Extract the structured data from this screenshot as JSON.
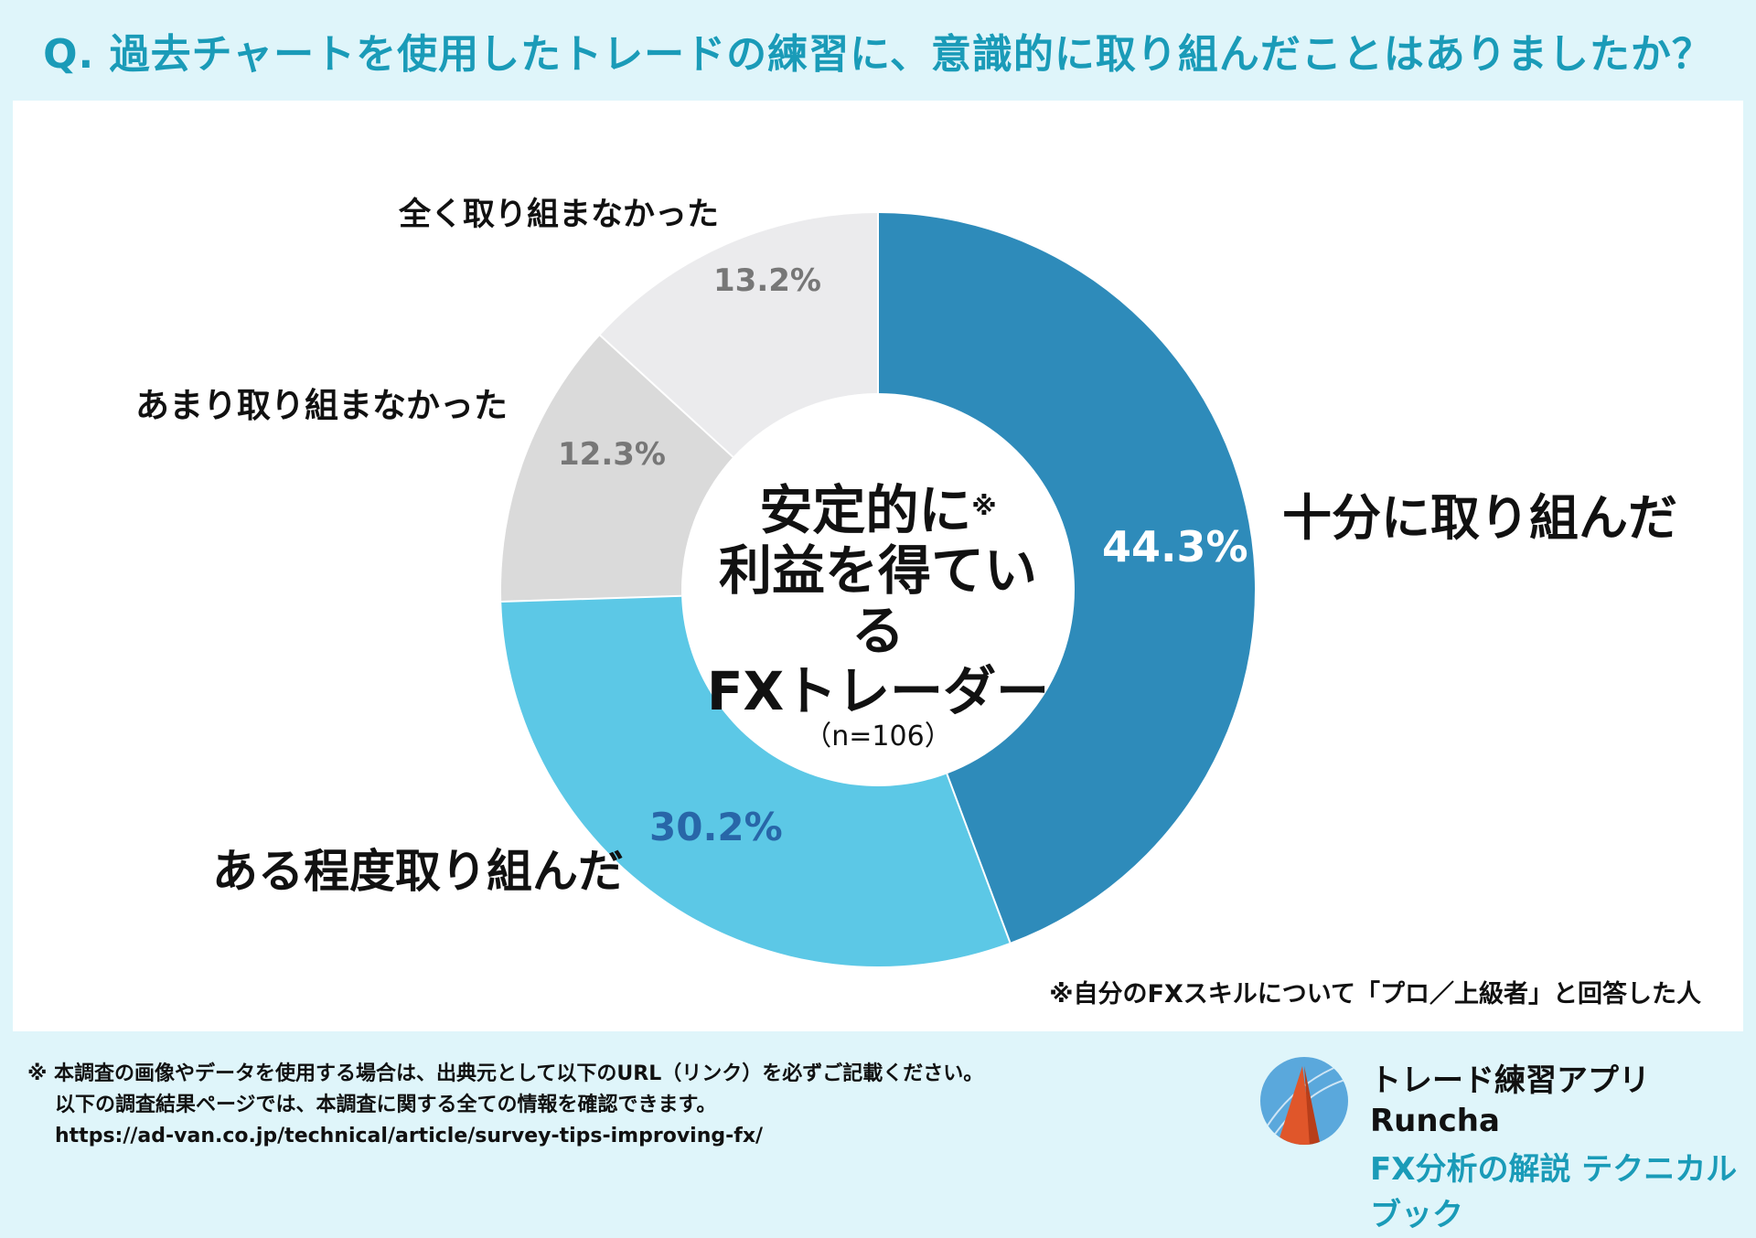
{
  "title": "Q. 過去チャートを使用したトレードの練習に、意識的に取り組んだことはありましたか？",
  "chart_data": {
    "type": "pie",
    "variant": "donut",
    "categories": [
      "十分に取り組んだ",
      "ある程度取り組んだ",
      "あまり取り組まなかった",
      "全く取り組まなかった"
    ],
    "values": [
      44.3,
      30.2,
      12.3,
      13.2
    ],
    "value_labels": [
      "44.3%",
      "30.2%",
      "12.3%",
      "13.2%"
    ],
    "colors": [
      "#2e8bba",
      "#5cc8e6",
      "#dadada",
      "#ebebed"
    ],
    "value_label_colors": [
      "#ffffff",
      "#2866a8",
      "#777777",
      "#777777"
    ],
    "center": {
      "line1": "安定的に",
      "note_mark": "※",
      "line2": "利益を得ている",
      "line3": "FXトレーダー",
      "n": "（n=106）"
    },
    "footnote": "※自分のFXスキルについて「プロ／上級者」と回答した人"
  },
  "bottom": {
    "line1": "※ 本調査の画像やデータを使用する場合は、出典元として以下のURL（リンク）を必ずご記載ください。",
    "line2": "以下の調査結果ページでは、本調査に関する全ての情報を確認できます。",
    "url": "https://ad-van.co.jp/technical/article/survey-tips-improving-fx/"
  },
  "brand": {
    "name": "トレード練習アプリ Runcha",
    "sub": "FX分析の解説 テクニカルブック",
    "logo_colors": [
      "#5aa8dc",
      "#e0562a"
    ]
  }
}
